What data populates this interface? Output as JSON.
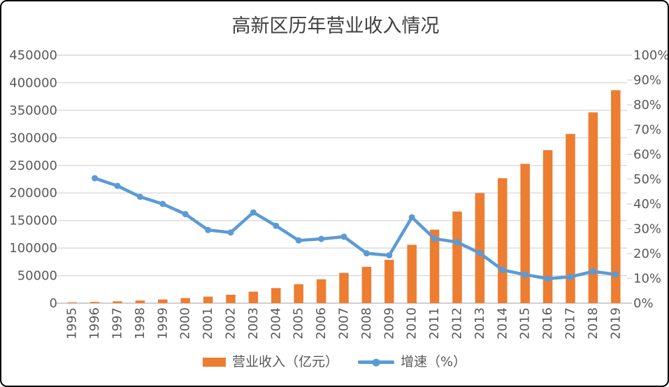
{
  "title": "高新区历年营业收入情况",
  "colors": {
    "bar": "#ED7D31",
    "line": "#5B9BD5",
    "title_text": "#404040",
    "axis_text": "#595959",
    "gridline": "#D9D9D9",
    "axis_line": "#D0D0D0",
    "background": "#FFFFFF",
    "border": "#000000"
  },
  "legend": [
    {
      "label": "营业收入（亿元）",
      "swatch": "bar-swatch",
      "color": "#ED7D31"
    },
    {
      "label": "增速（%）",
      "swatch": "line-marker-swatch",
      "color": "#5B9BD5"
    }
  ],
  "chart_data": {
    "type": "combo",
    "title": "高新区历年营业收入情况",
    "categories": [
      "1995",
      "1996",
      "1997",
      "1998",
      "1999",
      "2000",
      "2001",
      "2002",
      "2003",
      "2004",
      "2005",
      "2006",
      "2007",
      "2008",
      "2009",
      "2010",
      "2011",
      "2012",
      "2013",
      "2014",
      "2015",
      "2016",
      "2017",
      "2018",
      "2019"
    ],
    "series": [
      {
        "name": "营业收入（亿元）",
        "type": "bar",
        "axis": "left",
        "color": "#ED7D31",
        "values": [
          1530,
          2300,
          3388,
          4840,
          6775,
          9209,
          11928,
          15326,
          20939,
          27466,
          34416,
          43320,
          54926,
          65986,
          78707,
          105917,
          133425,
          166290,
          199902,
          226703,
          252749,
          277695,
          307142,
          346334,
          386452
        ]
      },
      {
        "name": "增速（%）",
        "type": "line",
        "axis": "right",
        "color": "#5B9BD5",
        "values": [
          null,
          50.4,
          47.3,
          42.9,
          40.0,
          35.9,
          29.5,
          28.5,
          36.6,
          31.2,
          25.3,
          25.9,
          26.8,
          20.1,
          19.3,
          34.6,
          26.0,
          24.6,
          20.2,
          13.4,
          11.5,
          9.9,
          10.6,
          12.8,
          11.6
        ]
      }
    ],
    "left_axis": {
      "min": 0,
      "max": 450000,
      "step": 50000,
      "tick_labels": [
        "450000",
        "400000",
        "350000",
        "300000",
        "250000",
        "200000",
        "150000",
        "100000",
        "50000",
        "0"
      ]
    },
    "right_axis": {
      "min": 0,
      "max": 100,
      "step": 10,
      "tick_labels": [
        "100%",
        "90%",
        "80%",
        "70%",
        "60%",
        "50%",
        "40%",
        "30%",
        "20%",
        "10%",
        "0%"
      ]
    },
    "grid": true,
    "legend_position": "bottom"
  }
}
